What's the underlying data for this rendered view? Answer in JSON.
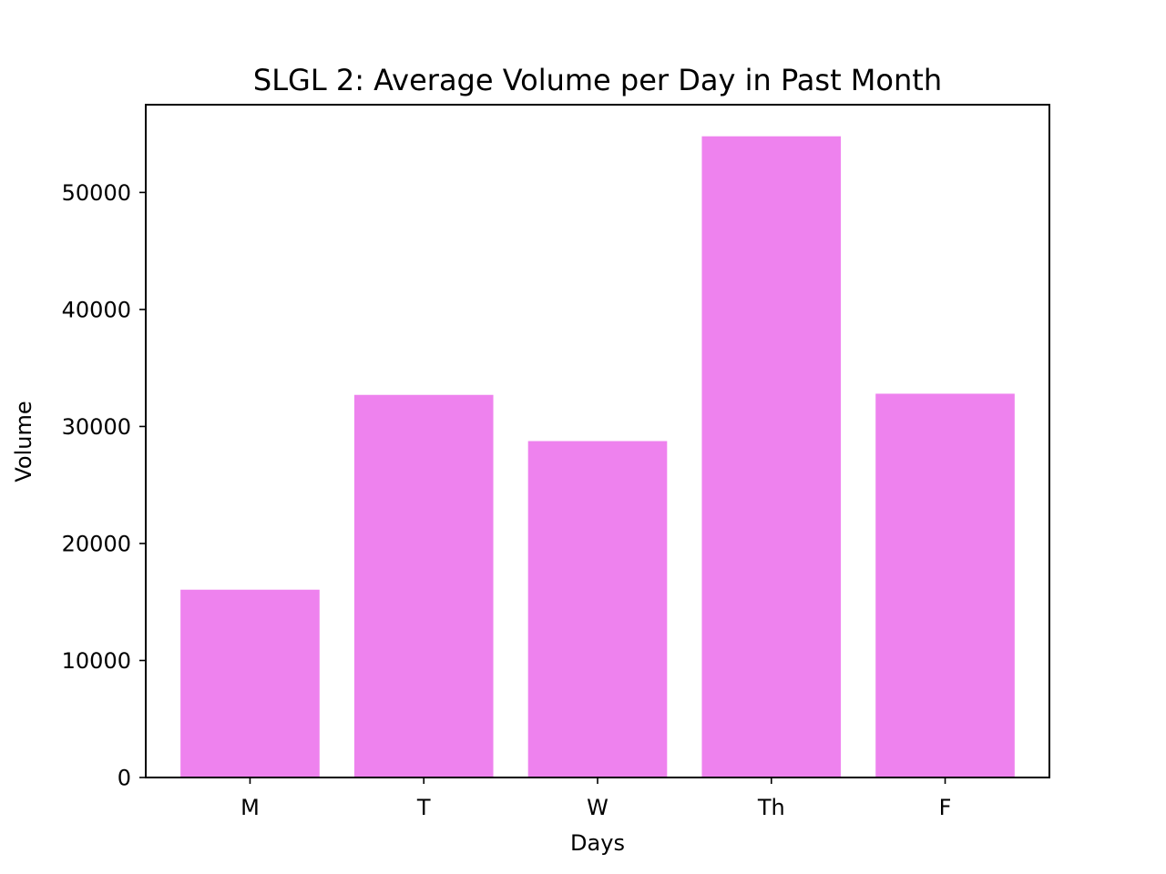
{
  "chart_data": {
    "type": "bar",
    "title": "SLGL 2: Average Volume per Day in Past Month",
    "xlabel": "Days",
    "ylabel": "Volume",
    "categories": [
      "M",
      "T",
      "W",
      "Th",
      "F"
    ],
    "values": [
      16050,
      32700,
      28750,
      54800,
      32800
    ],
    "ylim": [
      0,
      57500
    ],
    "yticks": [
      0,
      10000,
      20000,
      30000,
      40000,
      50000
    ],
    "ytick_labels": [
      "0",
      "10000",
      "20000",
      "30000",
      "40000",
      "50000"
    ],
    "grid": false,
    "legend": "none",
    "colors": {
      "bar": "#ee82ee",
      "axis": "#000000",
      "background": "#ffffff"
    }
  }
}
